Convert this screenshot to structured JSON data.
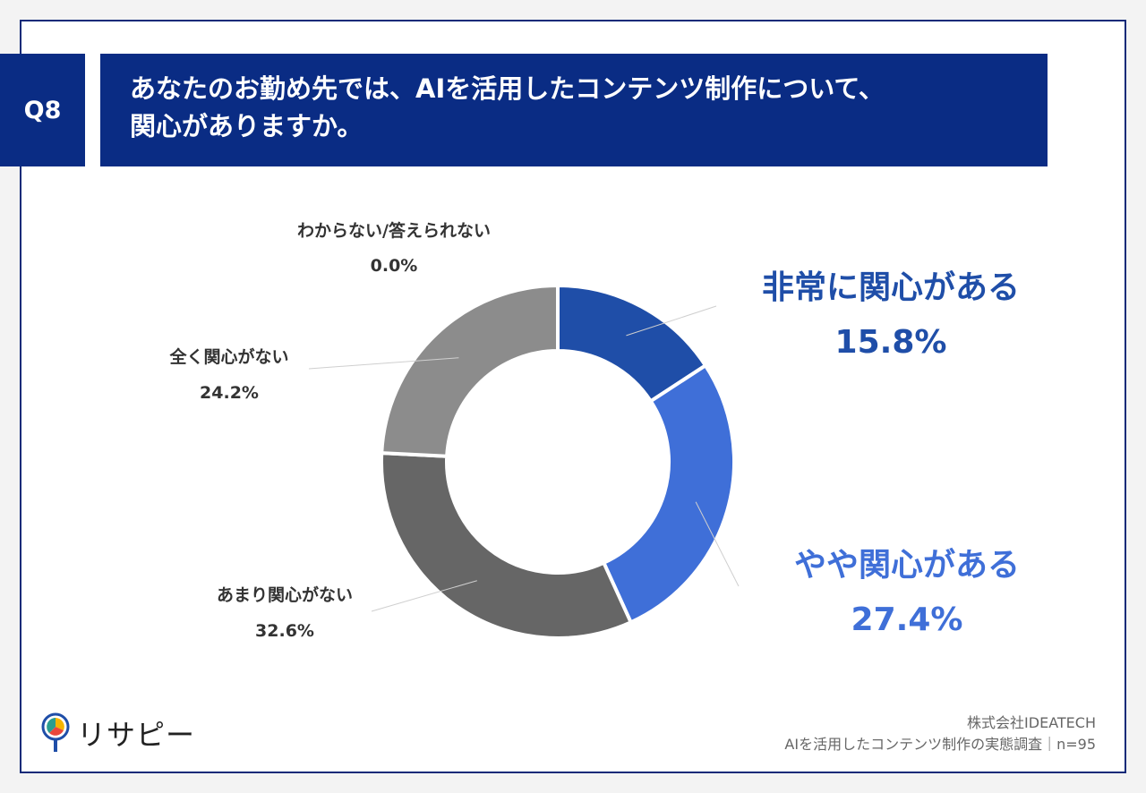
{
  "header": {
    "badge": "Q8",
    "question_line1": "あなたのお勤め先では、AIを活用したコンテンツ制作について、",
    "question_line2": "関心がありますか。"
  },
  "chart_data": {
    "type": "pie",
    "donut": true,
    "labels": [
      "非常に関心がある",
      "やや関心がある",
      "あまり関心がない",
      "全く関心がない",
      "わからない/答えられない"
    ],
    "values": [
      15.8,
      27.4,
      32.6,
      24.2,
      0.0
    ],
    "value_labels": [
      "15.8%",
      "27.4%",
      "32.6%",
      "24.2%",
      "0.0%"
    ],
    "colors": [
      "#1f4ea8",
      "#3f6fd8",
      "#666666",
      "#8c8c8c",
      "#b5b5b5"
    ]
  },
  "footer": {
    "logo_text": "リサピー",
    "company": "株式会社IDEATECH",
    "survey": "AIを活用したコンテンツ制作の実態調査｜n=95"
  }
}
